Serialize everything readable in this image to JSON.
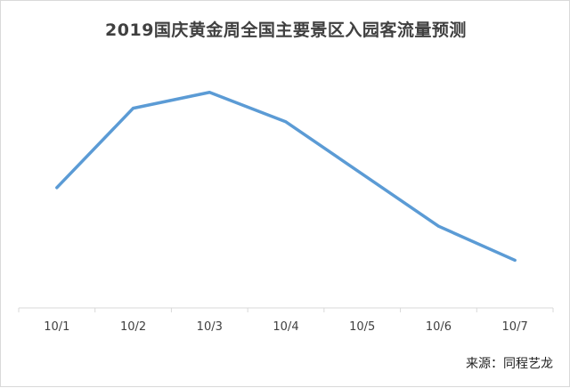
{
  "chart_data": {
    "type": "line",
    "title": "2019国庆黄金周全国主要景区入园客流量预测",
    "categories": [
      "10/1",
      "10/2",
      "10/3",
      "10/4",
      "10/5",
      "10/6",
      "10/7"
    ],
    "series": [
      {
        "values": [
          53,
          88,
          95,
          82,
          59,
          36,
          21
        ]
      }
    ],
    "ylim": [
      0,
      150
    ],
    "xlabel": "",
    "ylabel": "",
    "grid": false,
    "y_axis_visible": false,
    "line_color": "#5b9bd5",
    "axis_color": "#d9d9d9"
  },
  "source": "来源：同程艺龙"
}
